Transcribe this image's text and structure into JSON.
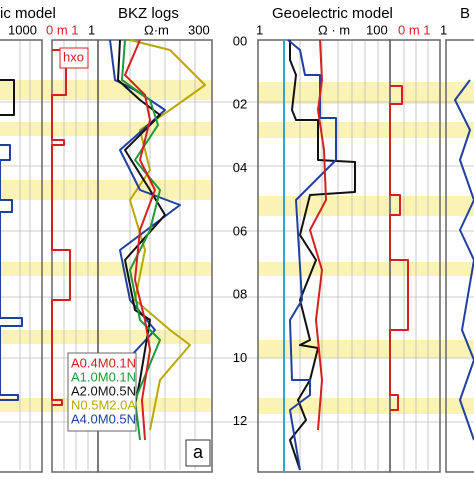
{
  "left_panel": {
    "title": "ic model",
    "bkz_title": "BKZ logs",
    "scale_max": "1000",
    "hxo_scale": "0 m 1",
    "bkz_scale_min": "1",
    "bkz_unit": "Ω·m",
    "bkz_scale_max": "300",
    "hxo_label": "hxo",
    "panel_letter": "a",
    "legend": [
      {
        "name": "A0.4M0.1N",
        "color": "#d42020"
      },
      {
        "name": "A1.0M0.1N",
        "color": "#1e9a3a"
      },
      {
        "name": "A2.0M0.5N",
        "color": "#111111"
      },
      {
        "name": "N0.5M2.0A",
        "color": "#b8a800"
      },
      {
        "name": "A4.0M0.5N",
        "color": "#2040a0"
      }
    ]
  },
  "right_panel": {
    "title": "Geoelectric model",
    "next_title": "B",
    "scale_min": "1",
    "unit": "Ω · m",
    "scale_max": "100",
    "hxo_scale": "0 m 1",
    "next_scale": "1"
  },
  "depth_labels": [
    "00",
    "02",
    "04",
    "06",
    "08",
    "10",
    "12"
  ]
}
